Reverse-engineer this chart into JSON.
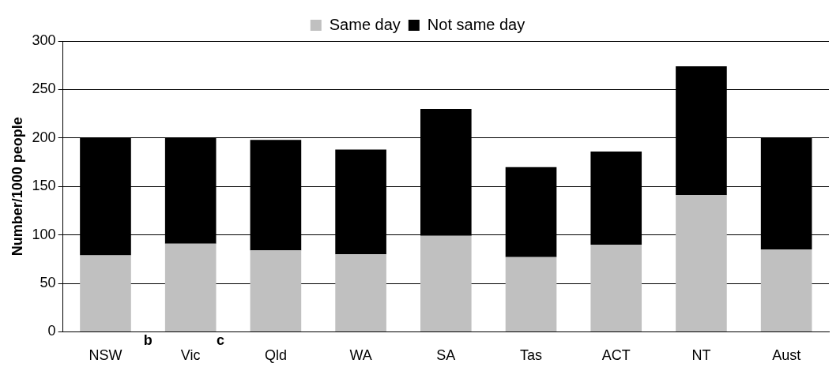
{
  "chart_data": {
    "type": "bar",
    "ylabel": "Number/1000 people",
    "categories": [
      "NSW",
      "Vic",
      "Qld",
      "WA",
      "SA",
      "Tas",
      "ACT",
      "NT",
      "Aust"
    ],
    "series": [
      {
        "name": "Same day",
        "color": "#c0c0c0",
        "values": [
          79,
          91,
          84,
          80,
          99,
          77,
          90,
          141,
          85
        ]
      },
      {
        "name": "Not same day",
        "color": "#000000",
        "values": [
          121,
          109,
          114,
          108,
          131,
          93,
          96,
          133,
          115
        ]
      }
    ],
    "stacked": true,
    "ylim": [
      0,
      300
    ],
    "yticks": [
      0,
      50,
      100,
      150,
      200,
      250,
      300
    ],
    "grid": "y",
    "legend": "top",
    "annotations": [
      "b",
      "c"
    ]
  }
}
